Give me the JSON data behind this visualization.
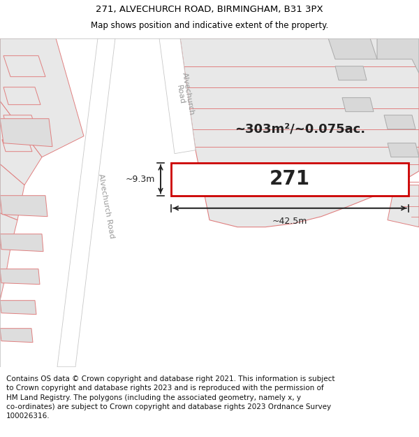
{
  "title_line1": "271, ALVECHURCH ROAD, BIRMINGHAM, B31 3PX",
  "title_line2": "Map shows position and indicative extent of the property.",
  "footer_lines": [
    "Contains OS data © Crown copyright and database right 2021. This information is subject to Crown copyright and database rights 2023 and is reproduced with the permission of",
    "HM Land Registry. The polygons (including the associated geometry, namely x, y co-ordinates) are subject to Crown copyright and database rights 2023 Ordnance Survey",
    "100026316."
  ],
  "bg_color": "#ffffff",
  "map_bg": "#ffffff",
  "parcel_fill": "#e8e8e8",
  "parcel_outline": "#e08080",
  "road_fill": "#ffffff",
  "road_outline": "#c8c8c8",
  "plot_fill": "#ffffff",
  "plot_outline": "#cc0000",
  "dim_color": "#222222",
  "label_271": "271",
  "area_label": "~303m²/~0.075ac.",
  "dim_width": "~42.5m",
  "dim_height": "~9.3m",
  "road_label_color": "#999999",
  "title_fontsize": 9.5,
  "subtitle_fontsize": 8.5,
  "footer_fontsize": 7.5
}
